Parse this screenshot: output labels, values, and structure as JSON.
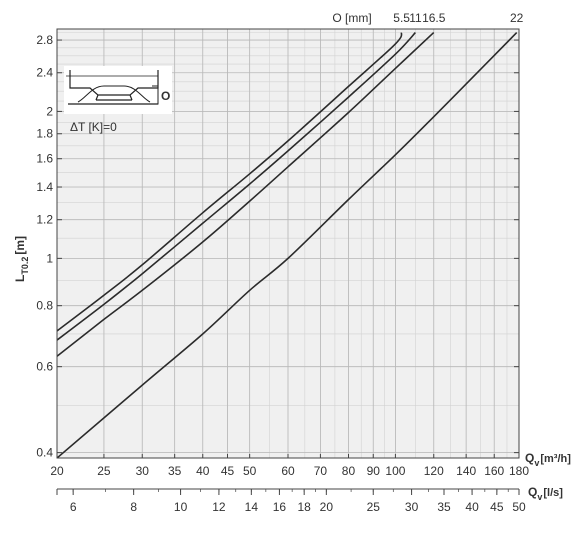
{
  "chart_data": {
    "type": "line",
    "title": "",
    "ylabel": {
      "main": "L",
      "sub": "T0.2",
      "unit": "[m]"
    },
    "x_primary": {
      "label": {
        "main": "Q",
        "sub": "v",
        "unit": "[m³/h]"
      },
      "scale": "log",
      "range": [
        20,
        180
      ],
      "ticks": [
        20,
        25,
        30,
        35,
        40,
        45,
        50,
        60,
        70,
        80,
        90,
        100,
        120,
        140,
        160,
        180
      ]
    },
    "x_secondary": {
      "label": {
        "main": "Q",
        "sub": "v",
        "unit": "[l/s]"
      },
      "scale": "log",
      "range": [
        5.556,
        50
      ],
      "ticks": [
        6,
        8,
        10,
        12,
        14,
        16,
        18,
        20,
        25,
        30,
        35,
        40,
        45,
        50
      ]
    },
    "y": {
      "scale": "log",
      "range": [
        0.39,
        2.95
      ],
      "ticks": [
        0.4,
        0.6,
        0.8,
        1,
        1.2,
        1.4,
        1.6,
        1.8,
        2,
        2.4,
        2.8
      ],
      "tick_labels": [
        "0.4",
        "0.6",
        "0.8",
        "1",
        "1.2",
        "1.4",
        "1.6",
        "1.8",
        "2",
        "2.4",
        "2.8"
      ]
    },
    "grid": true,
    "top_axis_label": "O [mm]",
    "series": [
      {
        "name": "5.5",
        "points": [
          [
            20,
            0.71
          ],
          [
            25,
            0.84
          ],
          [
            30,
            0.97
          ],
          [
            40,
            1.24
          ],
          [
            50,
            1.49
          ],
          [
            60,
            1.74
          ],
          [
            80,
            2.25
          ],
          [
            100,
            2.75
          ],
          [
            103,
            2.9
          ]
        ]
      },
      {
        "name": "11",
        "points": [
          [
            20,
            0.68
          ],
          [
            25,
            0.805
          ],
          [
            30,
            0.93
          ],
          [
            40,
            1.18
          ],
          [
            50,
            1.42
          ],
          [
            60,
            1.66
          ],
          [
            80,
            2.14
          ],
          [
            100,
            2.62
          ],
          [
            110,
            2.9
          ]
        ]
      },
      {
        "name": "16.5",
        "points": [
          [
            20,
            0.63
          ],
          [
            25,
            0.75
          ],
          [
            30,
            0.86
          ],
          [
            40,
            1.08
          ],
          [
            50,
            1.31
          ],
          [
            60,
            1.54
          ],
          [
            80,
            1.99
          ],
          [
            100,
            2.45
          ],
          [
            120,
            2.9
          ]
        ]
      },
      {
        "name": "22",
        "points": [
          [
            20,
            0.39
          ],
          [
            30,
            0.55
          ],
          [
            40,
            0.7
          ],
          [
            50,
            0.86
          ],
          [
            60,
            1.0
          ],
          [
            80,
            1.32
          ],
          [
            100,
            1.63
          ],
          [
            120,
            1.95
          ],
          [
            150,
            2.44
          ],
          [
            178,
            2.9
          ]
        ]
      }
    ],
    "inset": {
      "legend_text": "ΔT [K]=0",
      "marker_label": "O"
    }
  }
}
